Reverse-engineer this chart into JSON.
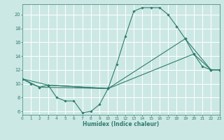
{
  "xlabel": "Humidex (Indice chaleur)",
  "bg_color": "#cce8e4",
  "grid_color": "#b8d8d4",
  "line_color": "#2e7d6e",
  "series1": [
    [
      0,
      10.7
    ],
    [
      1,
      10.0
    ],
    [
      2,
      9.5
    ],
    [
      3,
      9.8
    ],
    [
      10,
      9.3
    ],
    [
      11,
      12.8
    ],
    [
      12,
      16.8
    ],
    [
      13,
      20.5
    ],
    [
      14,
      21.0
    ],
    [
      15,
      21.0
    ],
    [
      16,
      21.0
    ],
    [
      17,
      20.0
    ],
    [
      18,
      18.3
    ],
    [
      19,
      16.5
    ],
    [
      20,
      14.3
    ],
    [
      21,
      12.5
    ],
    [
      22,
      12.0
    ],
    [
      23,
      12.0
    ]
  ],
  "series2": [
    [
      0,
      10.7
    ],
    [
      2,
      9.5
    ],
    [
      10,
      9.3
    ],
    [
      19,
      16.5
    ],
    [
      22,
      12.0
    ],
    [
      23,
      12.0
    ]
  ],
  "series3": [
    [
      0,
      10.7
    ],
    [
      3,
      9.8
    ],
    [
      10,
      9.3
    ],
    [
      20,
      14.3
    ],
    [
      22,
      12.0
    ],
    [
      23,
      12.0
    ]
  ],
  "series4": [
    [
      3,
      9.8
    ],
    [
      4,
      8.0
    ],
    [
      5,
      7.5
    ],
    [
      6,
      7.5
    ],
    [
      7,
      5.8
    ],
    [
      8,
      6.0
    ],
    [
      9,
      7.0
    ],
    [
      10,
      9.3
    ]
  ],
  "xlim": [
    0,
    23
  ],
  "ylim": [
    5.5,
    21.5
  ],
  "yticks": [
    6,
    8,
    10,
    12,
    14,
    16,
    18,
    20
  ],
  "xticks": [
    0,
    1,
    2,
    3,
    4,
    5,
    6,
    7,
    8,
    9,
    10,
    11,
    12,
    13,
    14,
    15,
    16,
    17,
    18,
    19,
    20,
    21,
    22,
    23
  ]
}
